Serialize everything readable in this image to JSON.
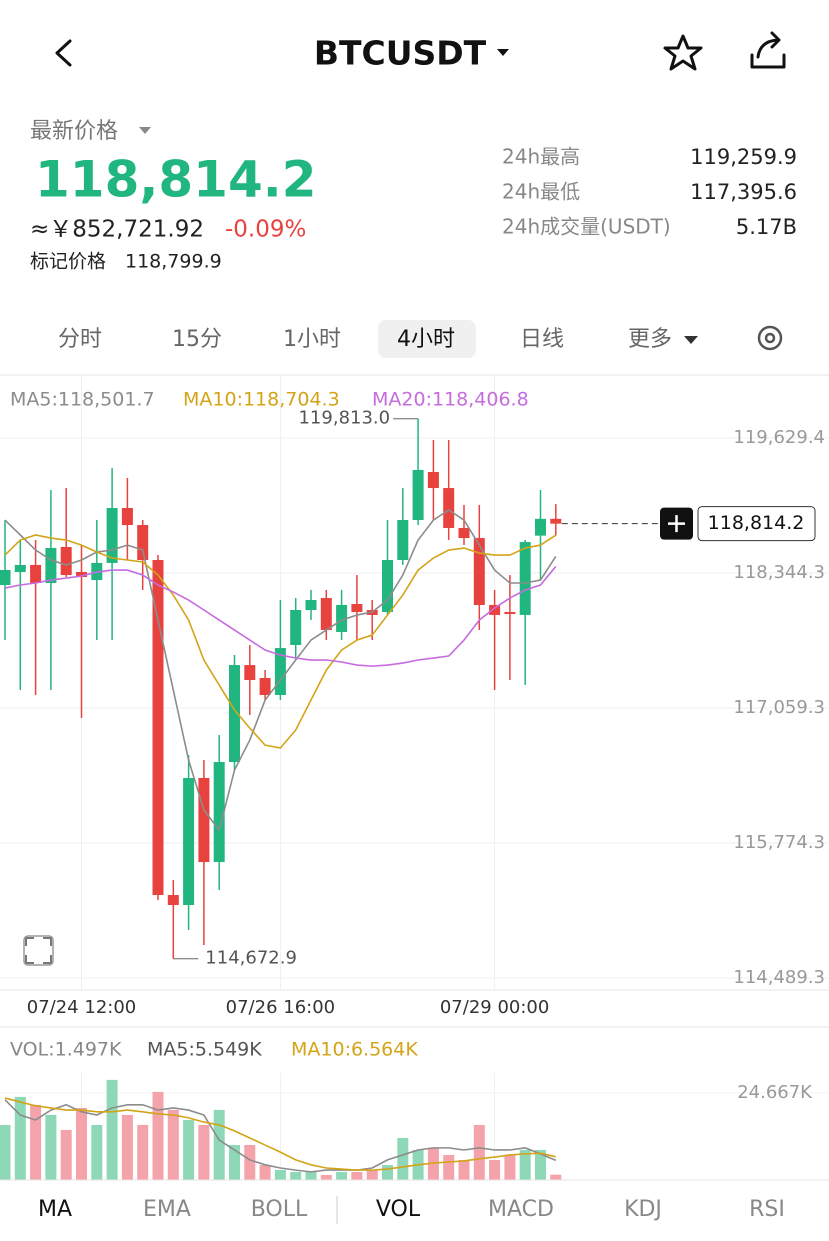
{
  "header": {
    "symbol": "BTCUSDT"
  },
  "price": {
    "label": "最新价格",
    "last": "118,814.2",
    "cny": "≈￥852,721.92",
    "change": "-0.09%",
    "mark_label": "标记价格",
    "mark_value": "118,799.9"
  },
  "stats": [
    {
      "label": "24h最高",
      "value": "119,259.9"
    },
    {
      "label": "24h最低",
      "value": "117,395.6"
    },
    {
      "label": "24h成交量(USDT)",
      "value": "5.17B"
    }
  ],
  "tabs": [
    "分时",
    "15分",
    "1小时",
    "4小时",
    "日线",
    "更多"
  ],
  "indicator_tabs": [
    "MA",
    "EMA",
    "BOLL",
    "VOL",
    "MACD",
    "KDJ",
    "RSI"
  ],
  "chart_data": [
    {
      "type": "candlestick",
      "up_color": "#21b67f",
      "down_color": "#e8423f",
      "categories": [
        null,
        null,
        null,
        null,
        null,
        "07/24 12:00",
        null,
        null,
        null,
        null,
        null,
        null,
        null,
        null,
        null,
        null,
        null,
        null,
        "07/26 16:00",
        null,
        null,
        null,
        null,
        null,
        null,
        null,
        null,
        null,
        null,
        null,
        null,
        null,
        "07/29 00:00",
        null,
        null,
        null,
        null
      ],
      "open": [
        118230,
        118354,
        118421,
        118249,
        118592,
        118354,
        118278,
        118440,
        118963,
        118801,
        118468,
        115279,
        115184,
        116393,
        115593,
        116545,
        117468,
        117345,
        117183,
        117659,
        117992,
        118106,
        117783,
        118049,
        117992,
        117973,
        118468,
        118849,
        119306,
        119153,
        118773,
        118677,
        118040,
        117973,
        117945,
        118700,
        118860
      ],
      "high": [
        118849,
        118658,
        118658,
        119134,
        119153,
        118611,
        118849,
        119344,
        119249,
        118849,
        118516,
        115422,
        116612,
        116564,
        116802,
        117564,
        117659,
        117421,
        118087,
        118106,
        118183,
        118183,
        118183,
        118325,
        118087,
        118849,
        119153,
        119813.0,
        119610,
        119610,
        118992,
        118992,
        118183,
        118325,
        118658,
        119134,
        119000
      ],
      "low": [
        117706,
        117231,
        117183,
        117231,
        118306,
        116964,
        117706,
        117706,
        118468,
        118183,
        115232,
        114672.9,
        114946,
        114803,
        115327,
        116469,
        116993,
        117136,
        117136,
        117516,
        117897,
        117706,
        117706,
        117706,
        117706,
        117945,
        118421,
        118801,
        118849,
        118658,
        118611,
        117802,
        117231,
        117326,
        117278,
        118278,
        118700
      ],
      "close": [
        118373,
        118421,
        118249,
        118582,
        118325,
        118306,
        118440,
        118963,
        118801,
        118468,
        115279,
        115184,
        116393,
        115593,
        116545,
        117468,
        117326,
        117183,
        117630,
        117992,
        118087,
        117802,
        118040,
        117973,
        117945,
        118468,
        118849,
        119325,
        119153,
        118773,
        118677,
        118040,
        117945,
        117954,
        118639,
        118860,
        118814.2
      ],
      "series": [
        {
          "name": "MA5:118,501.7",
          "color": "#8c8c8c",
          "values": [
            118848,
            118706,
            118563,
            118468,
            118420,
            118468,
            118544,
            118563,
            118610,
            118563,
            117896,
            117230,
            116564,
            116088,
            115897,
            116468,
            116754,
            117135,
            117325,
            117516,
            117706,
            117801,
            117896,
            117944,
            117973,
            118087,
            118325,
            118658,
            118848,
            118944,
            118848,
            118610,
            118372,
            118249,
            118249,
            118277,
            118501.7
          ]
        },
        {
          "name": "MA10:118,704.3",
          "color": "#d4a418",
          "values": [
            118515,
            118658,
            118706,
            118677,
            118658,
            118610,
            118544,
            118487,
            118468,
            118449,
            118325,
            118134,
            117896,
            117516,
            117278,
            117040,
            116868,
            116706,
            116678,
            116849,
            117135,
            117420,
            117611,
            117706,
            117754,
            117944,
            118134,
            118372,
            118487,
            118563,
            118582,
            118534,
            118515,
            118515,
            118582,
            118610,
            118704.3
          ]
        },
        {
          "name": "MA20:118,406.8",
          "color": "#c76be0",
          "values": [
            118201,
            118230,
            118249,
            118277,
            118296,
            118315,
            118353,
            118372,
            118372,
            118325,
            118230,
            118163,
            118087,
            117992,
            117896,
            117801,
            117706,
            117611,
            117563,
            117535,
            117516,
            117516,
            117497,
            117468,
            117458,
            117468,
            117487,
            117516,
            117535,
            117554,
            117706,
            117896,
            118011,
            118106,
            118182,
            118230,
            118406.8
          ]
        }
      ],
      "ylim": [
        114375,
        120229
      ],
      "yticks": [
        {
          "value": 119629.4,
          "label": "119,629.4"
        },
        {
          "value": 118344.3,
          "label": "118,344.3"
        },
        {
          "value": 117059.3,
          "label": "117,059.3"
        },
        {
          "value": 115774.3,
          "label": "115,774.3"
        },
        {
          "value": 114489.3,
          "label": "114,489.3"
        }
      ],
      "annotations": [
        {
          "value": 119813.0,
          "label": "119,813.0"
        },
        {
          "value": 114672.9,
          "label": "114,672.9"
        }
      ],
      "last_price": {
        "value": 118814.2,
        "label": "118,814.2"
      }
    },
    {
      "type": "bar",
      "title": "VOL:1.497K",
      "up_color": "#8ed8b7",
      "down_color": "#f3a3a9",
      "values": [
        15.59,
        23.53,
        21.26,
        18.43,
        14.18,
        20.41,
        15.59,
        28.35,
        18.43,
        15.59,
        24.95,
        19.85,
        17.01,
        15.59,
        19.85,
        9.92,
        9.92,
        4.25,
        2.84,
        2.27,
        2.27,
        1.42,
        2.27,
        2.27,
        2.84,
        4.25,
        11.91,
        8.51,
        9.07,
        7.09,
        5.67,
        15.59,
        5.67,
        7.09,
        8.51,
        8.51,
        1.497
      ],
      "series": [
        {
          "name": "MA5:5.549K",
          "color": "#8c8c8c",
          "values": [
            22.7,
            18.4,
            17.0,
            19.8,
            21.3,
            19.3,
            18.4,
            20.4,
            21.3,
            21.3,
            19.8,
            20.4,
            19.8,
            18.4,
            11.3,
            8.5,
            5.7,
            4.3,
            3.4,
            2.8,
            2.3,
            2.8,
            2.8,
            2.8,
            3.4,
            5.7,
            7.1,
            8.5,
            9.1,
            9.1,
            8.5,
            9.1,
            8.5,
            8.5,
            9.1,
            7.4,
            5.549
          ]
        },
        {
          "name": "MA10:6.564K",
          "color": "#d4a418",
          "values": [
            23.2,
            22.1,
            21.0,
            20.4,
            19.8,
            19.8,
            19.3,
            19.3,
            19.8,
            19.3,
            18.7,
            18.4,
            17.6,
            16.4,
            15.6,
            13.9,
            11.9,
            9.9,
            7.9,
            5.7,
            4.3,
            3.4,
            3.1,
            2.8,
            2.8,
            3.1,
            3.7,
            4.3,
            4.8,
            5.1,
            5.4,
            6.0,
            6.5,
            7.1,
            7.4,
            7.6,
            6.564
          ]
        }
      ],
      "ylim": [
        0,
        30.3
      ],
      "yticks": [
        {
          "value": 24.667,
          "label": "24.667K"
        }
      ]
    }
  ]
}
